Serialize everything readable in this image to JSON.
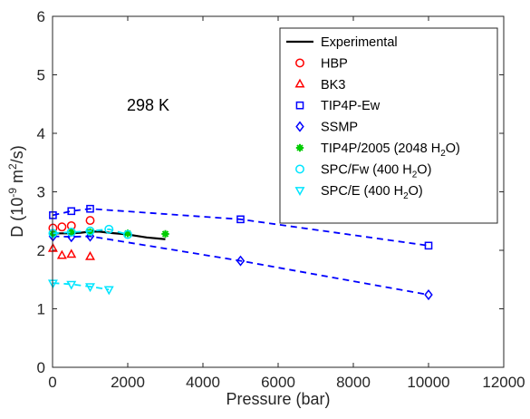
{
  "chart_data": {
    "type": "scatter",
    "annotation": "298 K",
    "xlabel": "Pressure (bar)",
    "ylabel": "D (10^-9 m^2/s)",
    "ylabel_parts": {
      "main": "D (10",
      "exp1": "-9",
      "mid": " m",
      "exp2": "2",
      "tail": "/s)"
    },
    "xlim": [
      0,
      12000
    ],
    "ylim": [
      0,
      6
    ],
    "xticks": [
      0,
      2000,
      4000,
      6000,
      8000,
      10000,
      12000
    ],
    "xtick_labels": [
      "0",
      "2000",
      "4000",
      "6000",
      "8000",
      "10000",
      "12000"
    ],
    "yticks": [
      0,
      1,
      2,
      3,
      4,
      5,
      6
    ],
    "ytick_labels": [
      "0",
      "1",
      "2",
      "3",
      "4",
      "5",
      "6"
    ],
    "legend_position": "top-right",
    "series": [
      {
        "name": "Experimental",
        "label_parts": [
          "Experimental"
        ],
        "style": "line",
        "color": "#000000",
        "x": [
          0,
          250,
          500,
          750,
          1000,
          1250,
          1500,
          2000,
          2500,
          3000
        ],
        "y": [
          2.29,
          2.29,
          2.29,
          2.3,
          2.32,
          2.32,
          2.3,
          2.27,
          2.22,
          2.19
        ]
      },
      {
        "name": "HBP",
        "label_parts": [
          "HBP"
        ],
        "style": "marker",
        "marker": "circle",
        "color": "#ff0000",
        "x": [
          10,
          250,
          500,
          1000
        ],
        "y": [
          2.38,
          2.4,
          2.42,
          2.51
        ]
      },
      {
        "name": "BK3",
        "label_parts": [
          "BK3"
        ],
        "style": "marker",
        "marker": "triangle-up",
        "color": "#ff0000",
        "x": [
          10,
          250,
          500,
          1000
        ],
        "y": [
          2.03,
          1.91,
          1.93,
          1.89
        ]
      },
      {
        "name": "TIP4P-Ew",
        "label_parts": [
          "TIP4P-Ew"
        ],
        "style": "marker-dashed",
        "marker": "square",
        "color": "#0000ff",
        "x": [
          10,
          500,
          1000,
          5000,
          10000
        ],
        "y": [
          2.6,
          2.67,
          2.71,
          2.53,
          2.08
        ]
      },
      {
        "name": "SSMP",
        "label_parts": [
          "SSMP"
        ],
        "style": "marker-dashed",
        "marker": "diamond",
        "color": "#0000ff",
        "x": [
          10,
          500,
          1000,
          5000,
          10000
        ],
        "y": [
          2.24,
          2.23,
          2.24,
          1.82,
          1.24
        ]
      },
      {
        "name": "TIP4P/2005 (2048 H2O)",
        "label_parts": [
          "TIP4P/2005 (2048 H",
          "2",
          "O)"
        ],
        "style": "marker",
        "marker": "asterisk",
        "color": "#00cc00",
        "x": [
          10,
          500,
          1000,
          2000,
          3000
        ],
        "y": [
          2.28,
          2.31,
          2.31,
          2.29,
          2.28
        ]
      },
      {
        "name": "SPC/Fw (400 H2O)",
        "label_parts": [
          "SPC/Fw (400 H",
          "2",
          "O)"
        ],
        "style": "marker-dashed",
        "marker": "circle",
        "color": "#00e5ff",
        "x": [
          10,
          500,
          1000,
          1500,
          2000
        ],
        "y": [
          2.29,
          2.31,
          2.33,
          2.36,
          2.27
        ]
      },
      {
        "name": "SPC/E (400 H2O)",
        "label_parts": [
          "SPC/E (400 H",
          "2",
          "O)"
        ],
        "style": "marker-dashed",
        "marker": "triangle-down",
        "color": "#00e5ff",
        "x": [
          10,
          500,
          1000,
          1500
        ],
        "y": [
          1.44,
          1.42,
          1.38,
          1.33
        ]
      }
    ]
  }
}
